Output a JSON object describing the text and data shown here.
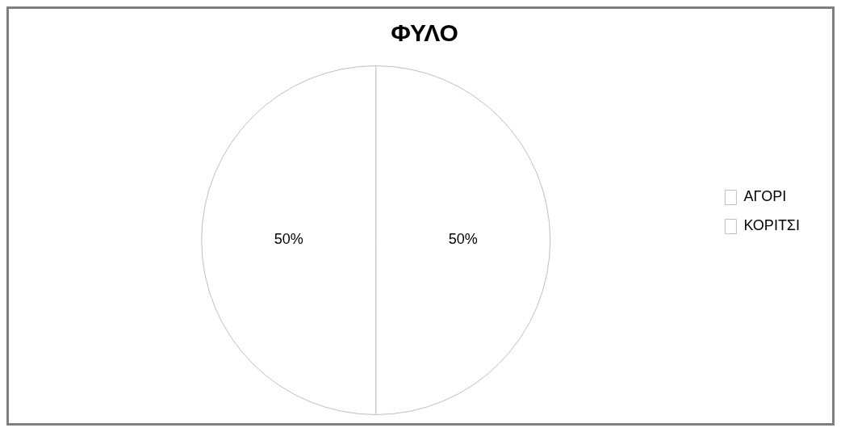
{
  "chart_data": {
    "type": "pie",
    "title": "ΦΥΛΟ",
    "categories": [
      "ΑΓΟΡΙ",
      "ΚΟΡΙΤΣΙ"
    ],
    "values": [
      50,
      50
    ],
    "value_labels": [
      "50%",
      "50%"
    ],
    "colors": [
      "#ffffff",
      "#ffffff"
    ],
    "legend": "right"
  }
}
